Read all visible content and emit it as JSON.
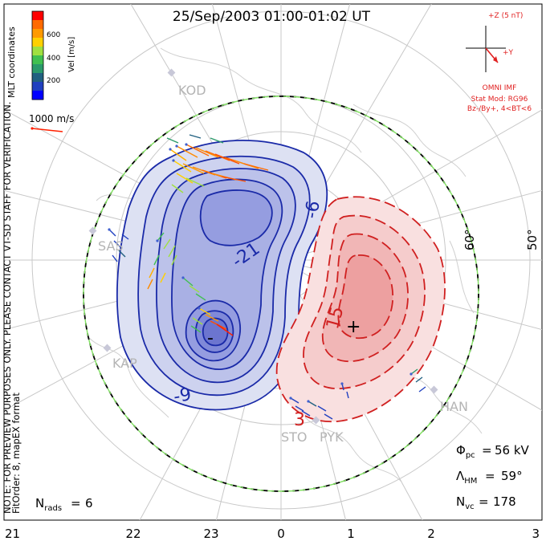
{
  "title": "25/Sep/2003 01:00-01:02 UT",
  "colorbar": {
    "label": "Vel [m/s]",
    "ticks": [
      "600",
      "400",
      "200"
    ],
    "colors": [
      "#ff0000",
      "#ff6a00",
      "#ff9a00",
      "#ffd000",
      "#a0e040",
      "#40c050",
      "#2a9a6a",
      "#206080",
      "#2040c0",
      "#0000ff"
    ]
  },
  "coords_label": "MLT coordinates",
  "ref_vector": {
    "label": "1000 m/s"
  },
  "imf": {
    "z_label": "+Z (5 nT)",
    "y_label": "+Y",
    "source": "OMNI IMF",
    "model": "Stat Mod: RG96",
    "condition": "Bz-/By+, 4<BT<6"
  },
  "watermark": "NOTE: FOR PREVIEW PURPOSES ONLY. PLEASE CONTACT VT-SD STAFF FOR VERIFICATION.",
  "fit_order": "FitOrder: 8, mapEX format",
  "latitude_labels": [
    "60°",
    "50°"
  ],
  "stations": [
    "KOD",
    "SAS",
    "KAP",
    "STO",
    "PYK",
    "HAN"
  ],
  "contours": {
    "negative_labels": [
      "-6",
      "-21",
      "-9",
      "-"
    ],
    "positive_labels": [
      "15",
      "3",
      "+"
    ],
    "negative_color": "#1a2aa8",
    "positive_color": "#d02020"
  },
  "stats": {
    "phi_pc": "56 kV",
    "lambda_hm": "59°",
    "n_vc": "178",
    "n_rads": "6"
  },
  "mlt_labels": [
    "21",
    "22",
    "23",
    "0",
    "1",
    "2",
    "3"
  ]
}
